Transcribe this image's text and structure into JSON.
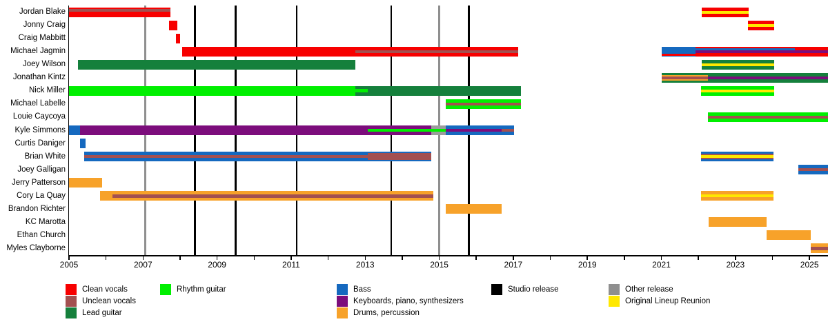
{
  "chart_data": {
    "type": "timeline",
    "description": "Band member tenure timeline (Gantt-style), 2005-2025",
    "x_axis": {
      "start_year": 2005,
      "end_year": 2025.5,
      "tick_every_years": 1,
      "labeled_years": [
        2005,
        2007,
        2009,
        2011,
        2013,
        2015,
        2017,
        2019,
        2021,
        2023,
        2025
      ]
    },
    "colors": {
      "clean": "#f70000",
      "unclean": "#a35050",
      "lead": "#15803c",
      "rhythm": "#00ef00",
      "bass": "#1569bf",
      "keys": "#7c0d7c",
      "drums": "#f7a22a",
      "yellow": "#ffe800",
      "gray_bar": "#9c9c9c",
      "studio": "#000000",
      "other": "#8f8f8f"
    },
    "releases": [
      {
        "year": 2007.05,
        "type": "other"
      },
      {
        "year": 2008.4,
        "type": "studio"
      },
      {
        "year": 2009.5,
        "type": "studio"
      },
      {
        "year": 2011.15,
        "type": "studio"
      },
      {
        "year": 2013.7,
        "type": "studio"
      },
      {
        "year": 2015.0,
        "type": "other"
      },
      {
        "year": 2015.8,
        "type": "studio"
      }
    ],
    "rows": [
      {
        "name": "Jordan Blake",
        "bars": [
          {
            "s": 2005.0,
            "e": 2007.74,
            "c": "clean"
          },
          {
            "s": 2022.09,
            "e": 2023.36,
            "c": "clean"
          }
        ],
        "stripes": [
          {
            "s": 2005.0,
            "e": 2007.74,
            "c": "unclean",
            "pos": "high",
            "h": 4
          },
          {
            "s": 2022.09,
            "e": 2023.36,
            "c": "yellow",
            "pos": "mid",
            "h": 4
          }
        ]
      },
      {
        "name": "Jonny Craig",
        "bars": [
          {
            "s": 2007.7,
            "e": 2007.93,
            "c": "clean"
          },
          {
            "s": 2023.34,
            "e": 2024.05,
            "c": "clean"
          }
        ],
        "stripes": [
          {
            "s": 2023.34,
            "e": 2024.05,
            "c": "yellow",
            "pos": "mid",
            "h": 4
          }
        ]
      },
      {
        "name": "Craig Mabbitt",
        "bars": [
          {
            "s": 2007.89,
            "e": 2008.0,
            "c": "clean"
          }
        ],
        "stripes": []
      },
      {
        "name": "Michael Jagmin",
        "bars": [
          {
            "s": 2008.06,
            "e": 2017.13,
            "c": "clean"
          },
          {
            "s": 2021.0,
            "e": 2021.92,
            "c": "bass"
          },
          {
            "s": 2021.92,
            "e": 2025.5,
            "c": "clean"
          }
        ],
        "stripes": [
          {
            "s": 2012.74,
            "e": 2017.13,
            "c": "unclean",
            "pos": "mid",
            "h": 4
          },
          {
            "s": 2021.0,
            "e": 2021.92,
            "c": "clean",
            "pos": "bottom",
            "h": 3
          },
          {
            "s": 2021.92,
            "e": 2025.5,
            "c": "keys",
            "pos": "mid",
            "h": 4
          },
          {
            "s": 2021.92,
            "e": 2024.61,
            "c": "bass",
            "pos": "high",
            "h": 3
          }
        ]
      },
      {
        "name": "Joey Wilson",
        "bars": [
          {
            "s": 2005.24,
            "e": 2012.74,
            "c": "lead"
          },
          {
            "s": 2022.09,
            "e": 2024.05,
            "c": "lead"
          }
        ],
        "stripes": [
          {
            "s": 2022.09,
            "e": 2024.05,
            "c": "yellow",
            "pos": "mid",
            "h": 4
          }
        ]
      },
      {
        "name": "Jonathan Kintz",
        "bars": [
          {
            "s": 2021.0,
            "e": 2022.26,
            "c": "lead"
          },
          {
            "s": 2022.26,
            "e": 2025.5,
            "c": "lead"
          }
        ],
        "stripes": [
          {
            "s": 2021.0,
            "e": 2022.26,
            "c": "drums",
            "pos": "mid",
            "h": 8
          },
          {
            "s": 2021.0,
            "e": 2022.26,
            "c": "unclean",
            "pos": "mid",
            "h": 4
          },
          {
            "s": 2022.26,
            "e": 2025.5,
            "c": "keys",
            "pos": "mid",
            "h": 4
          }
        ]
      },
      {
        "name": "Nick Miller",
        "bars": [
          {
            "s": 2005.0,
            "e": 2012.74,
            "c": "rhythm"
          },
          {
            "s": 2012.74,
            "e": 2017.21,
            "c": "lead"
          },
          {
            "s": 2022.07,
            "e": 2024.05,
            "c": "rhythm"
          }
        ],
        "stripes": [
          {
            "s": 2012.74,
            "e": 2013.07,
            "c": "rhythm",
            "pos": "mid",
            "h": 5
          },
          {
            "s": 2022.07,
            "e": 2024.05,
            "c": "yellow",
            "pos": "mid",
            "h": 4
          }
        ]
      },
      {
        "name": "Michael Labelle",
        "bars": [
          {
            "s": 2015.18,
            "e": 2017.21,
            "c": "rhythm"
          }
        ],
        "stripes": [
          {
            "s": 2015.18,
            "e": 2017.21,
            "c": "unclean",
            "pos": "mid",
            "h": 4
          }
        ]
      },
      {
        "name": "Louie Caycoya",
        "bars": [
          {
            "s": 2022.26,
            "e": 2025.5,
            "c": "rhythm"
          }
        ],
        "stripes": [
          {
            "s": 2022.26,
            "e": 2025.5,
            "c": "unclean",
            "pos": "mid",
            "h": 4
          }
        ]
      },
      {
        "name": "Kyle Simmons",
        "bars": [
          {
            "s": 2005.0,
            "e": 2005.3,
            "c": "bass"
          },
          {
            "s": 2005.3,
            "e": 2014.79,
            "c": "keys"
          },
          {
            "s": 2014.79,
            "e": 2015.18,
            "c": "gray_bar"
          },
          {
            "s": 2015.18,
            "e": 2017.02,
            "c": "bass"
          }
        ],
        "stripes": [
          {
            "s": 2013.07,
            "e": 2014.79,
            "c": "rhythm",
            "pos": "mid",
            "h": 4
          },
          {
            "s": 2014.79,
            "e": 2015.18,
            "c": "rhythm",
            "pos": "mid",
            "h": 4
          },
          {
            "s": 2015.18,
            "e": 2016.69,
            "c": "keys",
            "pos": "mid",
            "h": 4
          },
          {
            "s": 2016.69,
            "e": 2017.02,
            "c": "unclean",
            "pos": "mid",
            "h": 4
          }
        ]
      },
      {
        "name": "Curtis Daniger",
        "bars": [
          {
            "s": 2005.3,
            "e": 2005.45,
            "c": "bass"
          }
        ],
        "stripes": []
      },
      {
        "name": "Brian White",
        "bars": [
          {
            "s": 2005.41,
            "e": 2014.79,
            "c": "bass"
          },
          {
            "s": 2022.07,
            "e": 2024.03,
            "c": "bass"
          }
        ],
        "stripes": [
          {
            "s": 2005.41,
            "e": 2013.07,
            "c": "unclean",
            "pos": "mid",
            "h": 4
          },
          {
            "s": 2013.07,
            "e": 2014.79,
            "c": "unclean",
            "pos": "mid",
            "h": 10
          },
          {
            "s": 2022.07,
            "e": 2024.03,
            "c": "unclean",
            "pos": "mid",
            "h": 8
          },
          {
            "s": 2022.07,
            "e": 2024.03,
            "c": "yellow",
            "pos": "mid",
            "h": 4
          }
        ]
      },
      {
        "name": "Joey Galligan",
        "bars": [
          {
            "s": 2024.7,
            "e": 2025.5,
            "c": "bass"
          }
        ],
        "stripes": [
          {
            "s": 2024.7,
            "e": 2025.5,
            "c": "unclean",
            "pos": "mid",
            "h": 4
          }
        ]
      },
      {
        "name": "Jerry Patterson",
        "bars": [
          {
            "s": 2005.0,
            "e": 2005.89,
            "c": "drums"
          }
        ],
        "stripes": []
      },
      {
        "name": "Cory La Quay",
        "bars": [
          {
            "s": 2005.84,
            "e": 2014.84,
            "c": "drums"
          },
          {
            "s": 2022.07,
            "e": 2024.03,
            "c": "drums"
          }
        ],
        "stripes": [
          {
            "s": 2006.17,
            "e": 2014.84,
            "c": "unclean",
            "pos": "mid",
            "h": 5
          },
          {
            "s": 2022.07,
            "e": 2024.03,
            "c": "yellow",
            "pos": "mid",
            "h": 4
          }
        ]
      },
      {
        "name": "Brandon Richter",
        "bars": [
          {
            "s": 2015.18,
            "e": 2016.69,
            "c": "drums"
          }
        ],
        "stripes": []
      },
      {
        "name": "KC Marotta",
        "bars": [
          {
            "s": 2022.28,
            "e": 2023.84,
            "c": "drums"
          }
        ],
        "stripes": []
      },
      {
        "name": "Ethan Church",
        "bars": [
          {
            "s": 2023.84,
            "e": 2025.03,
            "c": "drums"
          }
        ],
        "stripes": []
      },
      {
        "name": "Myles Clayborne",
        "bars": [
          {
            "s": 2025.03,
            "e": 2025.5,
            "c": "drums"
          }
        ],
        "stripes": [
          {
            "s": 2025.03,
            "e": 2025.5,
            "c": "unclean",
            "pos": "mid",
            "h": 5
          }
        ]
      }
    ],
    "legend": {
      "position": "bottom",
      "items": [
        {
          "label": "Clean vocals",
          "color": "clean",
          "column": 0
        },
        {
          "label": "Unclean vocals",
          "color": "unclean",
          "column": 0
        },
        {
          "label": "Lead guitar",
          "color": "lead",
          "column": 0
        },
        {
          "label": "Rhythm guitar",
          "color": "rhythm",
          "column": 1
        },
        {
          "label": "Bass",
          "color": "bass",
          "column": 2
        },
        {
          "label": "Keyboards, piano, synthesizers",
          "color": "keys",
          "column": 2
        },
        {
          "label": "Drums, percussion",
          "color": "drums",
          "column": 2
        },
        {
          "label": "Studio release",
          "color": "studio",
          "column": 3
        },
        {
          "label": "Other release",
          "color": "other",
          "column": 4
        },
        {
          "label": "Original Lineup Reunion",
          "color": "yellow",
          "column": 4
        }
      ]
    }
  }
}
